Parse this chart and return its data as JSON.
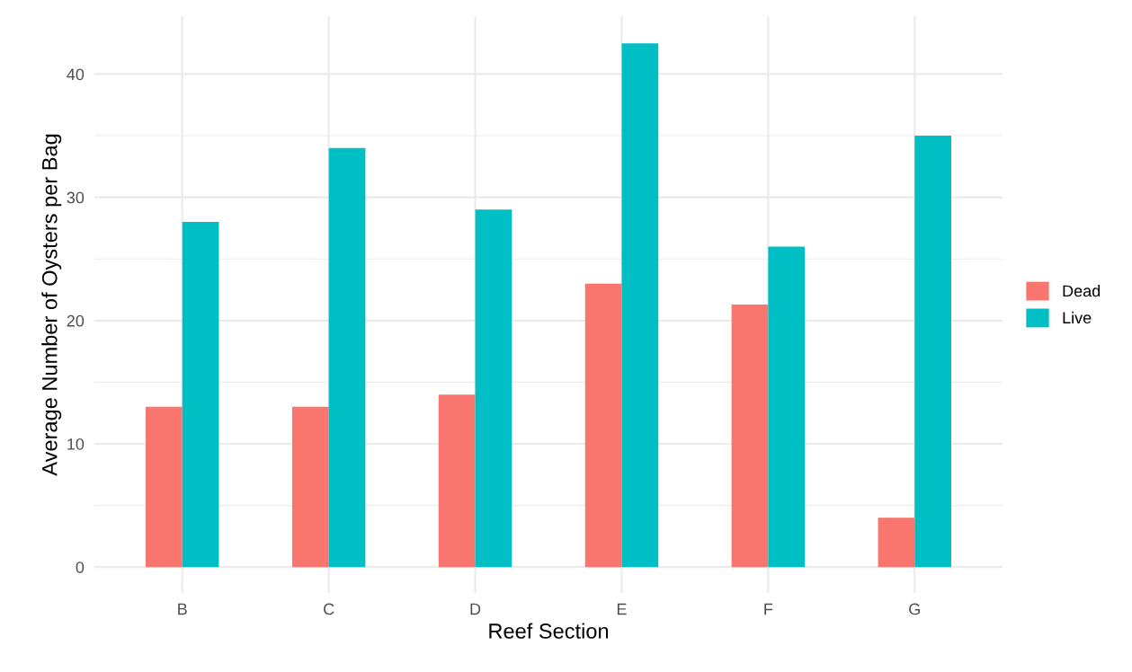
{
  "chart_data": {
    "type": "bar",
    "xlabel": "Reef Section",
    "ylabel": "Average Number of Oysters per Bag",
    "categories": [
      "B",
      "C",
      "D",
      "E",
      "F",
      "G"
    ],
    "series": [
      {
        "name": "Dead",
        "color": "#f8766d",
        "values": [
          13,
          13,
          14,
          23,
          21.3,
          4
        ]
      },
      {
        "name": "Live",
        "color": "#00bfc4",
        "values": [
          28,
          34,
          29,
          42.5,
          26,
          35
        ]
      }
    ],
    "ylim": [
      -2.1,
      44.7
    ],
    "yticks": [
      0,
      10,
      20,
      30,
      40
    ],
    "grid": true,
    "legend": "right"
  }
}
